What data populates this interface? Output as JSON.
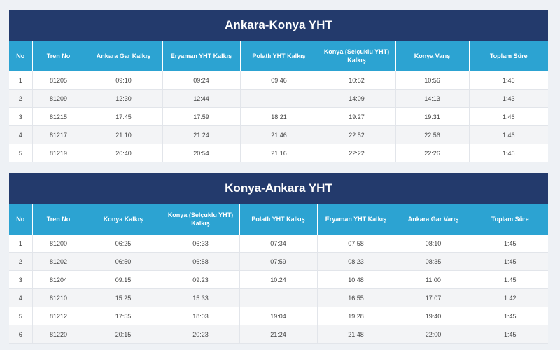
{
  "tables": [
    {
      "title": "Ankara-Konya YHT",
      "headers": [
        "No",
        "Tren No",
        "Ankara Gar Kalkış",
        "Eryaman YHT Kalkış",
        "Polatlı YHT Kalkış",
        "Konya (Selçuklu YHT) Kalkış",
        "Konya Varış",
        "Toplam Süre"
      ],
      "rows": [
        [
          "1",
          "81205",
          "09:10",
          "09:24",
          "09:46",
          "10:52",
          "10:56",
          "1:46"
        ],
        [
          "2",
          "81209",
          "12:30",
          "12:44",
          "",
          "14:09",
          "14:13",
          "1:43"
        ],
        [
          "3",
          "81215",
          "17:45",
          "17:59",
          "18:21",
          "19:27",
          "19:31",
          "1:46"
        ],
        [
          "4",
          "81217",
          "21:10",
          "21:24",
          "21:46",
          "22:52",
          "22:56",
          "1:46"
        ],
        [
          "5",
          "81219",
          "20:40",
          "20:54",
          "21:16",
          "22:22",
          "22:26",
          "1:46"
        ]
      ]
    },
    {
      "title": "Konya-Ankara YHT",
      "headers": [
        "No",
        "Tren No",
        "Konya Kalkış",
        "Konya (Selçuklu YHT) Kalkış",
        "Polatlı YHT Kalkış",
        "Eryaman YHT Kalkış",
        "Ankara Gar Varış",
        "Toplam Süre"
      ],
      "rows": [
        [
          "1",
          "81200",
          "06:25",
          "06:33",
          "07:34",
          "07:58",
          "08:10",
          "1:45"
        ],
        [
          "2",
          "81202",
          "06:50",
          "06:58",
          "07:59",
          "08:23",
          "08:35",
          "1:45"
        ],
        [
          "3",
          "81204",
          "09:15",
          "09:23",
          "10:24",
          "10:48",
          "11:00",
          "1:45"
        ],
        [
          "4",
          "81210",
          "15:25",
          "15:33",
          "",
          "16:55",
          "17:07",
          "1:42"
        ],
        [
          "5",
          "81212",
          "17:55",
          "18:03",
          "19:04",
          "19:28",
          "19:40",
          "1:45"
        ],
        [
          "6",
          "81220",
          "20:15",
          "20:23",
          "21:24",
          "21:48",
          "22:00",
          "1:45"
        ]
      ]
    }
  ]
}
